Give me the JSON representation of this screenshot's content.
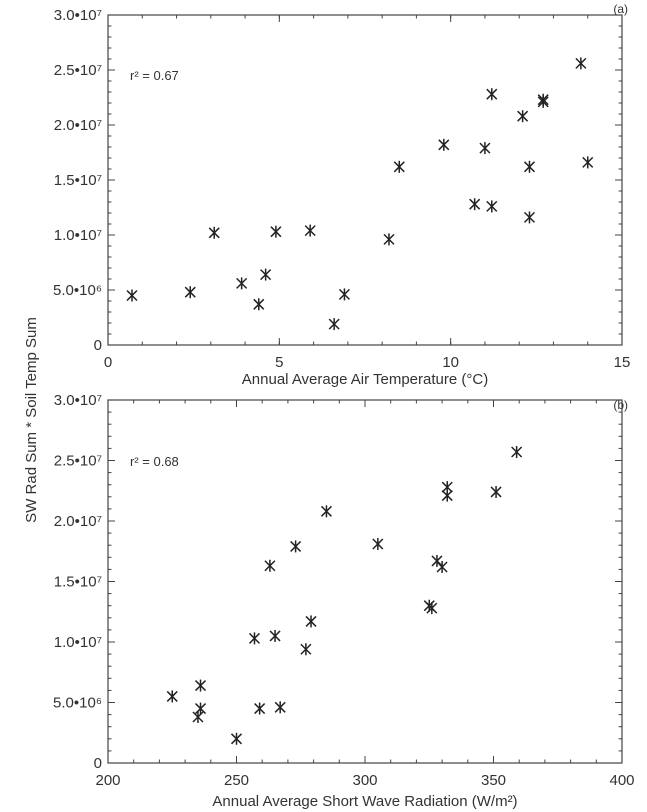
{
  "shared_ylabel": "SW Rad Sum * Soil Temp Sum",
  "chart_data": [
    {
      "type": "scatter",
      "panel_label": "(a)",
      "annotation": "r² = 0.67",
      "xlabel": "Annual Average Air Temperature (°C)",
      "xlim": [
        0,
        15
      ],
      "ylim": [
        0,
        30000000
      ],
      "xticks": [
        0,
        5,
        10,
        15
      ],
      "ytick_labels": [
        "0",
        "5.0•10⁶",
        "1.0•10⁷",
        "1.5•10⁷",
        "2.0•10⁷",
        "2.5•10⁷",
        "3.0•10⁷"
      ],
      "ytick_values": [
        0,
        5000000,
        10000000,
        15000000,
        20000000,
        25000000,
        30000000
      ],
      "x": [
        0.7,
        2.4,
        3.1,
        3.9,
        4.4,
        4.6,
        4.9,
        5.9,
        6.6,
        6.9,
        8.2,
        8.5,
        9.8,
        10.7,
        11.0,
        11.2,
        11.2,
        12.1,
        12.3,
        12.3,
        12.7,
        12.7,
        13.8,
        14.0
      ],
      "y": [
        4500000,
        4800000,
        10200000,
        5600000,
        3700000,
        6400000,
        10300000,
        10400000,
        1900000,
        4600000,
        9600000,
        16200000,
        18200000,
        12800000,
        17900000,
        12600000,
        22800000,
        20800000,
        11600000,
        16200000,
        22300000,
        22100000,
        25600000,
        16600000
      ]
    },
    {
      "type": "scatter",
      "panel_label": "(b)",
      "annotation": "r² = 0.68",
      "xlabel": "Annual Average Short Wave Radiation (W/m²)",
      "xlim": [
        200,
        400
      ],
      "ylim": [
        0,
        30000000
      ],
      "xticks": [
        200,
        250,
        300,
        350,
        400
      ],
      "ytick_labels": [
        "0",
        "5.0•10⁶",
        "1.0•10⁷",
        "1.5•10⁷",
        "2.0•10⁷",
        "2.5•10⁷",
        "3.0•10⁷"
      ],
      "ytick_values": [
        0,
        5000000,
        10000000,
        15000000,
        20000000,
        25000000,
        30000000
      ],
      "x": [
        225,
        235,
        236,
        236,
        250,
        257,
        259,
        263,
        265,
        267,
        273,
        277,
        279,
        285,
        305,
        325,
        326,
        328,
        330,
        332,
        332,
        351,
        359
      ],
      "y": [
        5500000,
        3800000,
        6400000,
        4500000,
        2000000,
        10300000,
        4500000,
        16300000,
        10500000,
        4600000,
        17900000,
        9400000,
        11700000,
        20800000,
        18100000,
        13000000,
        12800000,
        16700000,
        16200000,
        22800000,
        22100000,
        22400000,
        25700000
      ]
    }
  ]
}
